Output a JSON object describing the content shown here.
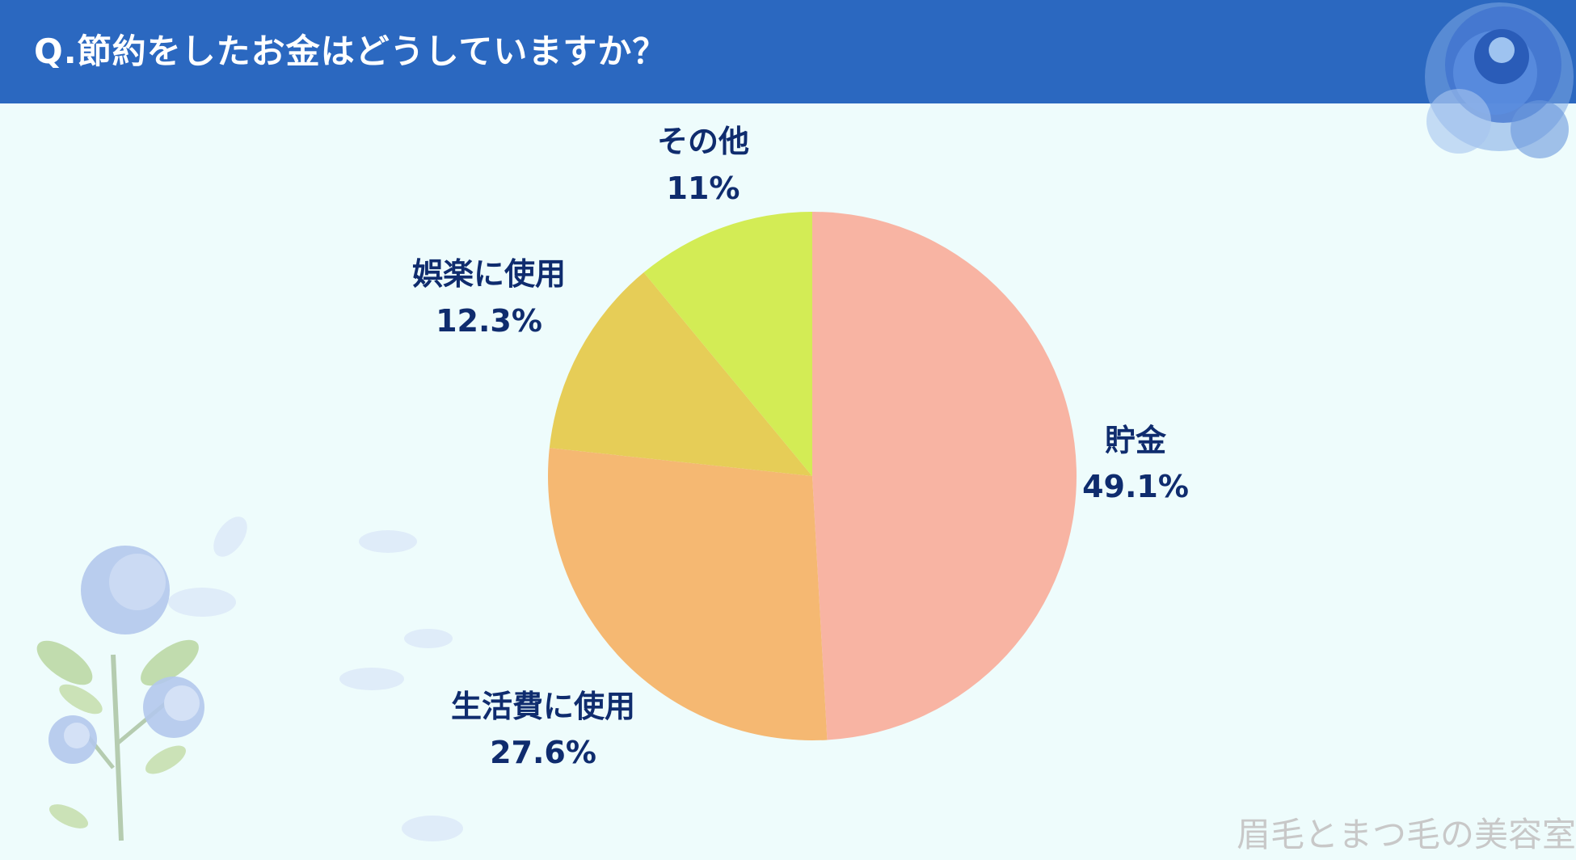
{
  "header": {
    "title": "Q.節約をしたお金はどうしていますか？"
  },
  "watermark": "眉毛とまつ毛の美容室",
  "colors": {
    "header": "#2b68c0",
    "background": "#eefcfc",
    "label": "#0f2c6e"
  },
  "chart_data": {
    "type": "pie",
    "title": "Q.節約をしたお金はどうしていますか？",
    "slices": [
      {
        "label": "貯金",
        "value": 49.1,
        "display": "49.1%",
        "color": "#f8b4a3"
      },
      {
        "label": "生活費に使用",
        "value": 27.6,
        "display": "27.6%",
        "color": "#f5b872"
      },
      {
        "label": "娯楽に使用",
        "value": 12.3,
        "display": "12.3%",
        "color": "#e6cd57"
      },
      {
        "label": "その他",
        "value": 11,
        "display": "11%",
        "color": "#d3ec55"
      }
    ]
  }
}
